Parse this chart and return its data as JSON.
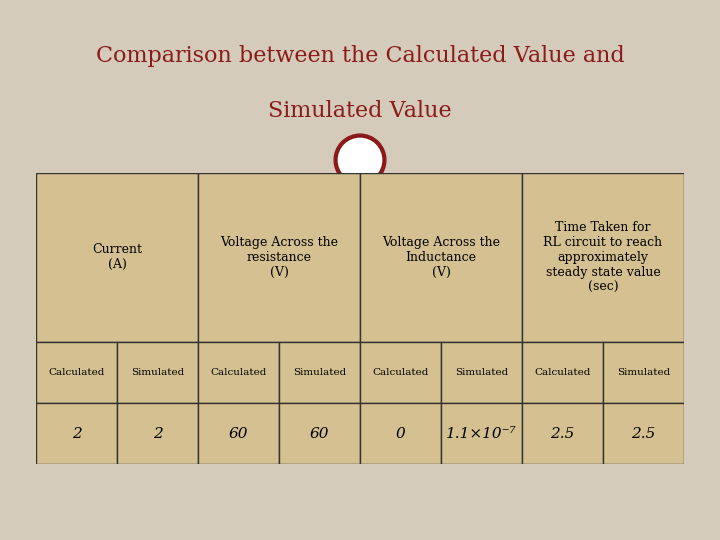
{
  "title_line1": "Comparison between the Calculated Value and",
  "title_line2": "Simulated Value",
  "title_color": "#8B1A1A",
  "slide_bg": "#D4CBBA",
  "content_bg": "#C8BCA8",
  "header_bg": "#ffffff",
  "table_bg": "#D4C090",
  "border_color": "#333333",
  "bottom_bar_color": "#A31515",
  "red_line_color": "#8B1A1A",
  "col_headers": [
    "Current\n(A)",
    "Voltage Across the\nresistance\n(V)",
    "Voltage Across the\nInductance\n(V)",
    "Time Taken for\nRL circuit to reach\napproximately\nsteady state value\n(sec)"
  ],
  "sub_headers": [
    "Calculated",
    "Simulated",
    "Calculated",
    "Simulated",
    "Calculated",
    "Simulated",
    "Calculated",
    "Simulated"
  ],
  "data_row": [
    "2",
    "2",
    "60",
    "60",
    "0",
    "1.1×10⁻⁷",
    "2.5",
    "2.5"
  ],
  "circle_color": "#8B1A1A",
  "circle_bg": "#ffffff",
  "title_fontsize": 16,
  "header_fontsize": 9,
  "subheader_fontsize": 7.5,
  "data_fontsize": 11
}
